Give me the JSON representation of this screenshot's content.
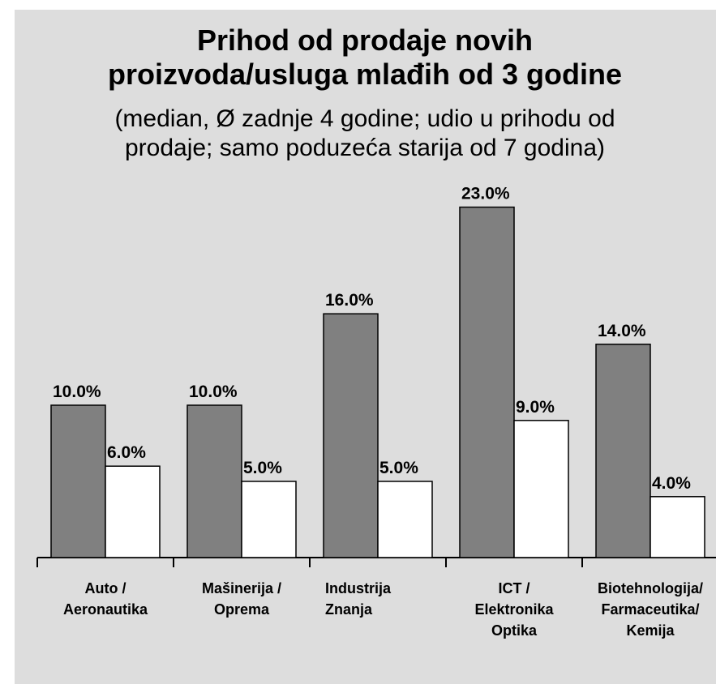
{
  "chart_data": {
    "type": "bar",
    "title": [
      "Prihod od prodaje novih",
      "proizvoda/usluga mlađih od 3 godine"
    ],
    "subtitle": [
      "(median, Ø zadnje 4 godine; udio u prihodu od",
      "prodaje; samo poduzeća starija od 7 godina)"
    ],
    "categories": [
      [
        "Auto /",
        "Aeronautika"
      ],
      [
        "Mašinerija /",
        "Oprema"
      ],
      [
        "Industrija",
        "Znanja"
      ],
      [
        "ICT /",
        "Elektronika",
        "Optika"
      ],
      [
        "Biotehnologija/",
        "Farmaceutika/",
        "Kemija"
      ]
    ],
    "series": [
      {
        "color": "#808080",
        "values": [
          10,
          10,
          16,
          23,
          14
        ],
        "value_labels": [
          "10.0%",
          "10.0%",
          "16.0%",
          "23.0%",
          "14.0%"
        ]
      },
      {
        "color": "#ffffff",
        "values": [
          6,
          5,
          5,
          9,
          4
        ],
        "value_labels": [
          "6.0%",
          "5.0%",
          "5.0%",
          "9.0%",
          "4.0%"
        ]
      }
    ]
  }
}
